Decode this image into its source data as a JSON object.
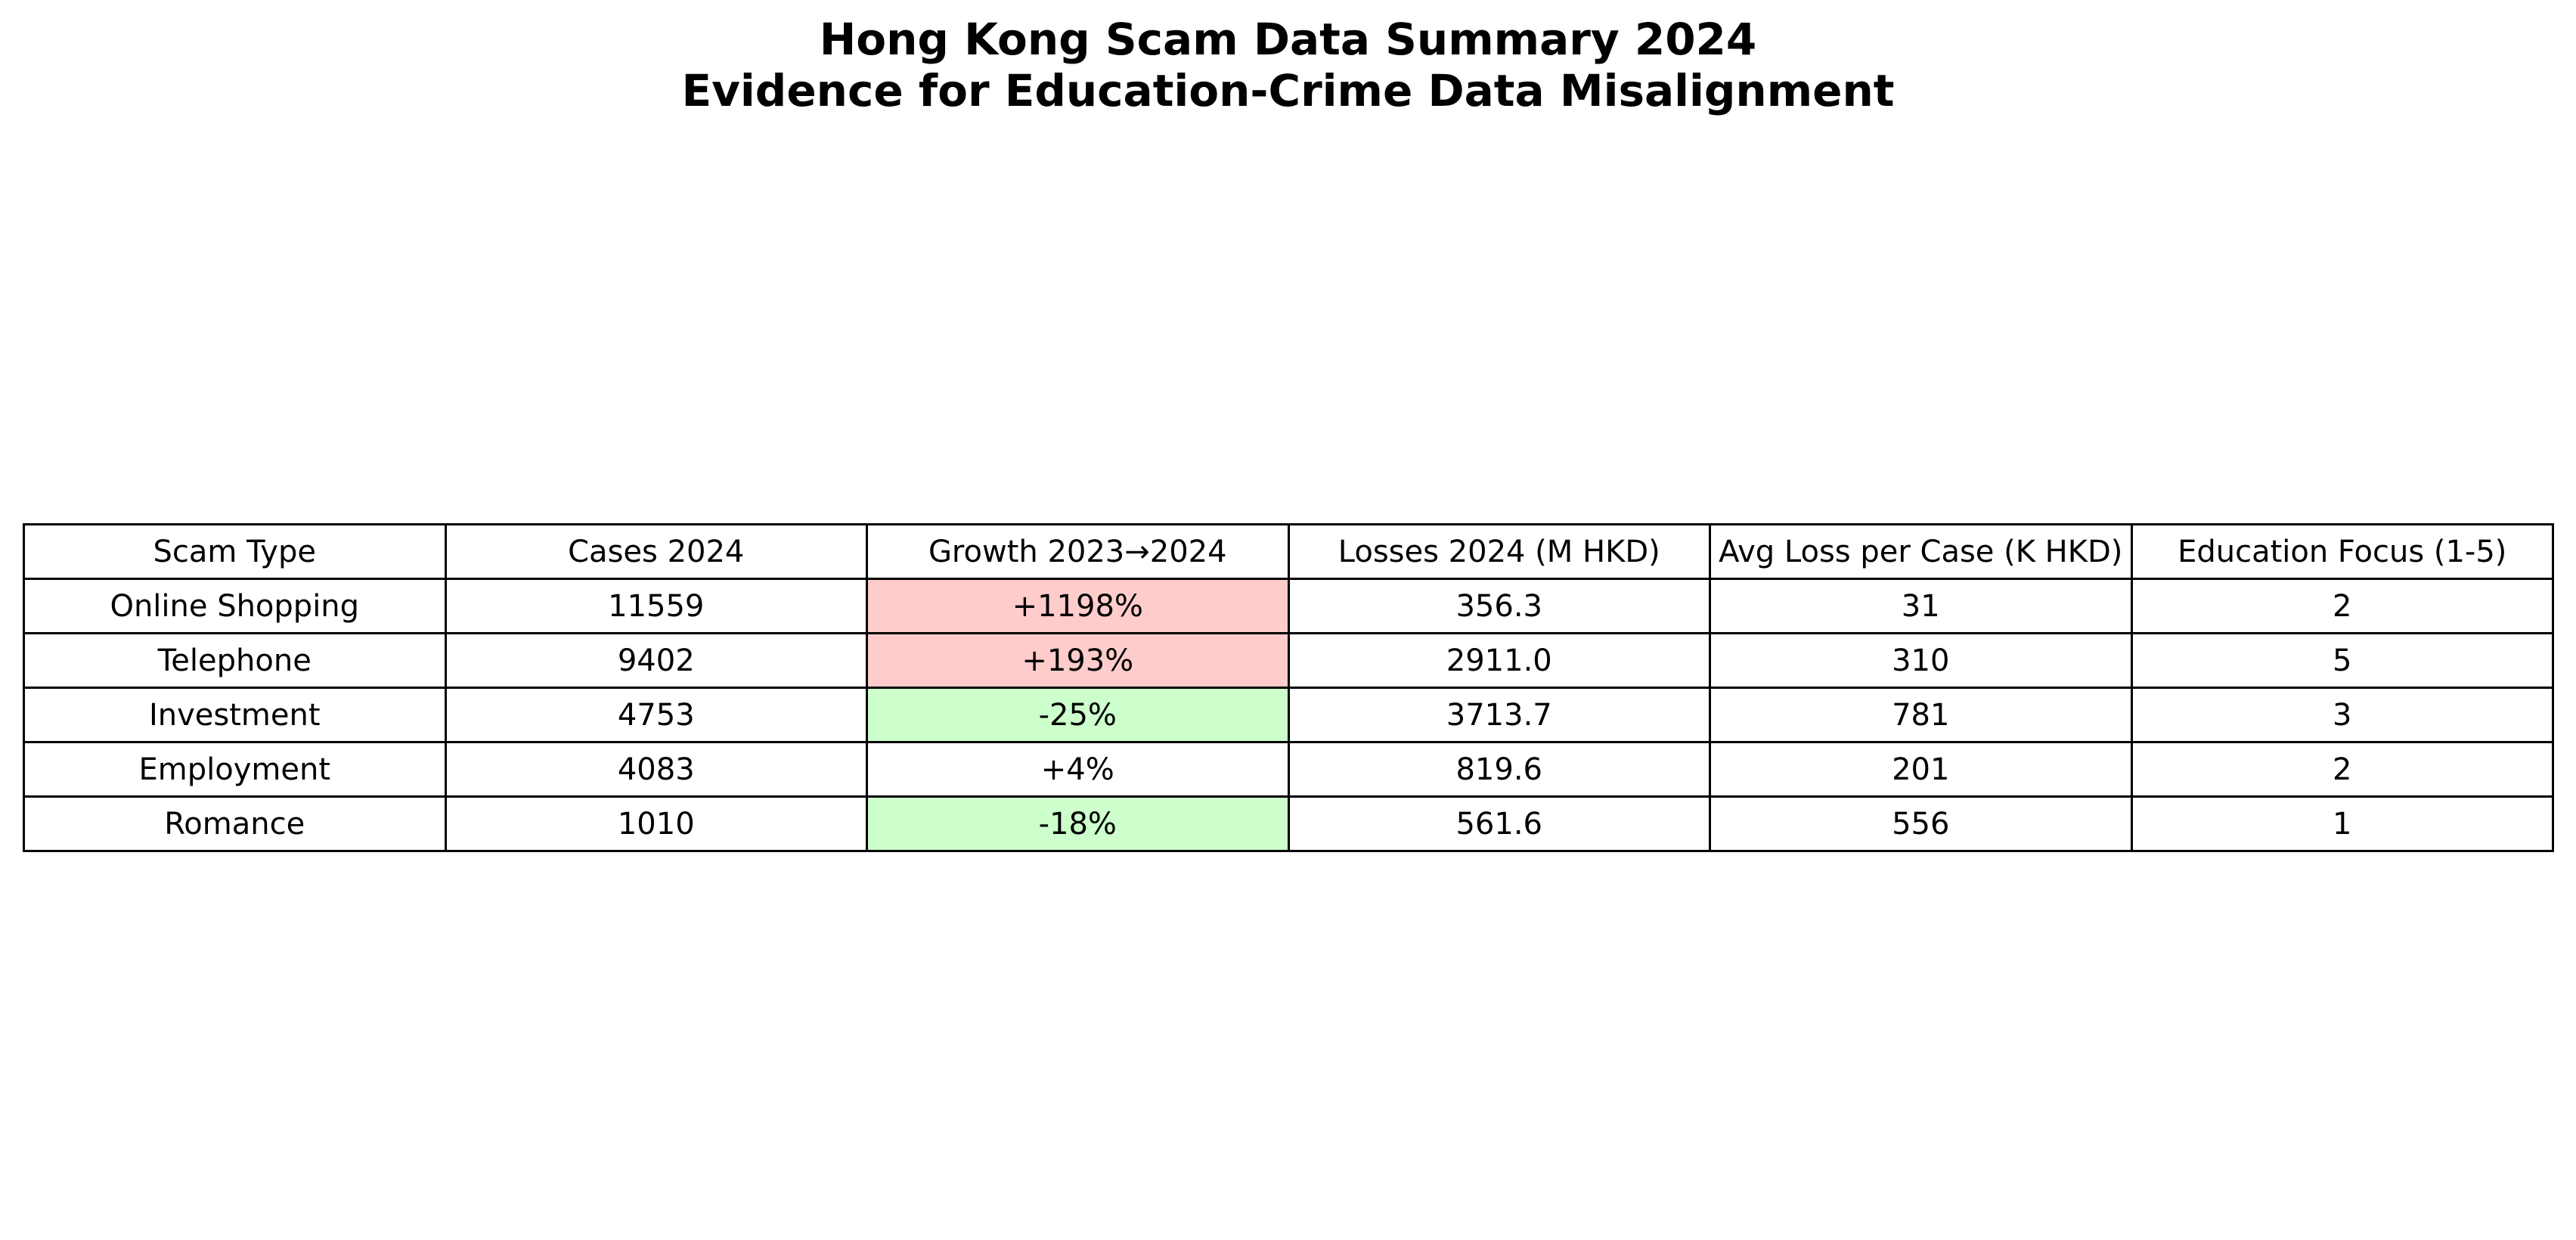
{
  "chart_data": {
    "type": "table",
    "title": "Hong Kong Scam Data Summary 2024",
    "subtitle": "Evidence for Education-Crime Data Misalignment",
    "columns": [
      "Scam Type",
      "Cases 2024",
      "Growth 2023→2024",
      "Losses 2024 (M HKD)",
      "Avg Loss per Case (K HKD)",
      "Education Focus (1-5)"
    ],
    "rows": [
      [
        "Online Shopping",
        "11559",
        "+1198%",
        "356.3",
        "31",
        "2"
      ],
      [
        "Telephone",
        "9402",
        "+193%",
        "2911.0",
        "310",
        "5"
      ],
      [
        "Investment",
        "4753",
        "-25%",
        "3713.7",
        "781",
        "3"
      ],
      [
        "Employment",
        "4083",
        "+4%",
        "819.6",
        "201",
        "2"
      ],
      [
        "Romance",
        "1010",
        "-18%",
        "561.6",
        "556",
        "1"
      ]
    ],
    "highlight_colors": {
      "high_growth": "#ffcccc",
      "decline": "#ccffcc",
      "neutral": "#ffffff"
    },
    "growth_highlight": [
      "high_growth",
      "high_growth",
      "decline",
      "neutral",
      "decline"
    ]
  }
}
